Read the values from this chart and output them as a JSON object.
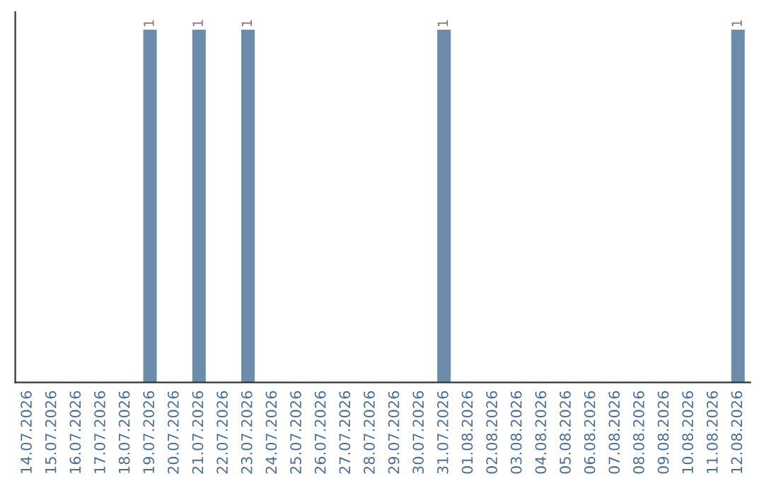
{
  "chart_data": {
    "type": "bar",
    "categories": [
      "14.07.2026",
      "15.07.2026",
      "16.07.2026",
      "17.07.2026",
      "18.07.2026",
      "19.07.2026",
      "20.07.2026",
      "21.07.2026",
      "22.07.2026",
      "23.07.2026",
      "24.07.2026",
      "25.07.2026",
      "26.07.2026",
      "27.07.2026",
      "28.07.2026",
      "29.07.2026",
      "30.07.2026",
      "31.07.2026",
      "01.08.2026",
      "02.08.2026",
      "03.08.2026",
      "04.08.2026",
      "05.08.2026",
      "06.08.2026",
      "07.08.2026",
      "08.08.2026",
      "09.08.2026",
      "10.08.2026",
      "11.08.2026",
      "12.08.2026"
    ],
    "values": [
      0,
      0,
      0,
      0,
      0,
      1,
      0,
      1,
      0,
      1,
      0,
      0,
      0,
      0,
      0,
      0,
      0,
      1,
      0,
      0,
      0,
      0,
      0,
      0,
      0,
      0,
      0,
      0,
      0,
      1
    ],
    "value_labels": [
      null,
      null,
      null,
      null,
      null,
      "1",
      null,
      "1",
      null,
      "1",
      null,
      null,
      null,
      null,
      null,
      null,
      null,
      "1",
      null,
      null,
      null,
      null,
      null,
      null,
      null,
      null,
      null,
      null,
      null,
      "1"
    ],
    "color": "#6b8cab",
    "tick_labels": "x",
    "grid": false,
    "legend": false
  }
}
